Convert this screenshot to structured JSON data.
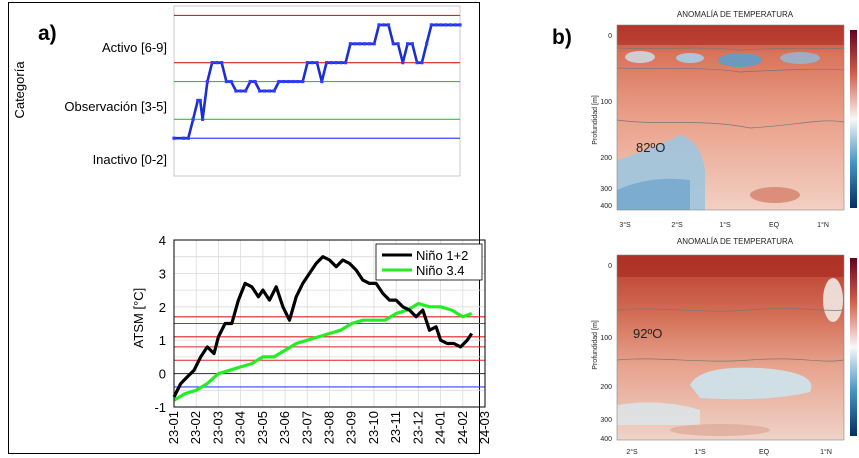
{
  "panel_a": {
    "letter": "a)",
    "top_chart": {
      "ylabel": "Categoría",
      "categories": [
        "Activo [6-9]",
        "Observación [3-5]",
        "Inactivo [0-2]"
      ]
    }
  },
  "panel_b": {
    "letter": "b)",
    "heatmap_top": {
      "title": "ANOMALÍA DE TEMPERATURA",
      "ylabel": "Profundidad [m]",
      "label": "82ºO"
    },
    "heatmap_bottom": {
      "title": "ANOMALÍA DE TEMPERATURA",
      "ylabel": "Profundidad [m]",
      "label": "92ºO"
    }
  },
  "chart_data": [
    {
      "type": "line",
      "title": "",
      "ylabel": "Categoría",
      "ylim": [
        0,
        9
      ],
      "category_axis": [
        "Inactivo [0-2]",
        "Observación [3-5]",
        "Activo [6-9]"
      ],
      "threshold_lines": [
        {
          "y": 8.5,
          "color": "#e02020"
        },
        {
          "y": 6.0,
          "color": "#e02020"
        },
        {
          "y": 5.0,
          "color": "#22cc22"
        },
        {
          "y": 3.0,
          "color": "#22cc22"
        },
        {
          "y": 2.0,
          "color": "#3344ff"
        }
      ],
      "series": [
        {
          "color": "#1a2fd0",
          "x": [
            0,
            2,
            3,
            4,
            5,
            5.5,
            6,
            7,
            8,
            9,
            10,
            11,
            12,
            13,
            14,
            15,
            16,
            17,
            18,
            19,
            20,
            21,
            22,
            23,
            24,
            25,
            26,
            27,
            28,
            29,
            30,
            31,
            32,
            33,
            34,
            35,
            36,
            37,
            38,
            39,
            40,
            41,
            42,
            43,
            44,
            45,
            46,
            47,
            48,
            49,
            50,
            51,
            52,
            53,
            54,
            55,
            56,
            57,
            58,
            59,
            60
          ],
          "values": [
            2.0,
            2.0,
            2.0,
            3.0,
            4.0,
            4.0,
            3.0,
            5.0,
            6.0,
            6.0,
            6.0,
            5.0,
            5.0,
            4.5,
            4.5,
            4.5,
            5.0,
            5.0,
            4.5,
            4.5,
            4.5,
            4.5,
            5.0,
            5.0,
            5.0,
            5.0,
            5.0,
            5.0,
            6.0,
            6.0,
            6.0,
            5.0,
            6.0,
            6.0,
            6.0,
            6.0,
            6.0,
            7.0,
            7.0,
            7.0,
            7.0,
            7.0,
            7.0,
            8.0,
            8.0,
            8.0,
            7.0,
            7.0,
            6.0,
            7.0,
            7.0,
            6.0,
            6.0,
            7.0,
            8.0,
            8.0,
            8.0,
            8.0,
            8.0,
            8.0,
            8.0
          ]
        }
      ]
    },
    {
      "type": "line",
      "title": "",
      "xlabel": "",
      "ylabel": "ATSM [°C]",
      "ylim": [
        -1,
        4
      ],
      "yticks": [
        -1,
        0,
        1,
        2,
        3,
        4
      ],
      "xticks": [
        "23-01",
        "23-02",
        "23-03",
        "23-04",
        "23-05",
        "23-06",
        "23-07",
        "23-08",
        "23-09",
        "23-10",
        "23-11",
        "23-12",
        "24-01",
        "24-02",
        "24-03"
      ],
      "grid": true,
      "legend": "top-right",
      "threshold_lines": [
        {
          "y": 1.7,
          "color": "#e02020"
        },
        {
          "y": 1.5,
          "color": "#e02020"
        },
        {
          "y": 1.1,
          "color": "#e02020"
        },
        {
          "y": 0.8,
          "color": "#e02020"
        },
        {
          "y": 0.4,
          "color": "#e02020"
        },
        {
          "y": 0.0,
          "color": "#444444"
        },
        {
          "y": -0.4,
          "color": "#3344ff"
        }
      ],
      "series": [
        {
          "name": "Niño 1+2",
          "color": "#000000",
          "x": [
            0.0,
            0.3,
            0.6,
            0.9,
            1.2,
            1.5,
            1.8,
            2.0,
            2.3,
            2.6,
            2.9,
            3.2,
            3.5,
            3.8,
            4.0,
            4.3,
            4.6,
            4.9,
            5.2,
            5.5,
            5.8,
            6.1,
            6.4,
            6.7,
            7.0,
            7.3,
            7.6,
            7.9,
            8.2,
            8.5,
            8.8,
            9.1,
            9.4,
            9.7,
            10.0,
            10.3,
            10.6,
            10.9,
            11.2,
            11.5,
            11.8,
            12.0,
            12.3,
            12.6,
            12.9,
            13.2,
            13.4
          ],
          "values": [
            -0.7,
            -0.3,
            -0.1,
            0.1,
            0.5,
            0.8,
            0.6,
            1.1,
            1.5,
            1.5,
            2.2,
            2.7,
            2.6,
            2.3,
            2.5,
            2.2,
            2.6,
            2.0,
            1.6,
            2.3,
            2.7,
            3.0,
            3.3,
            3.5,
            3.4,
            3.2,
            3.4,
            3.3,
            3.1,
            2.8,
            2.7,
            2.7,
            2.4,
            2.2,
            2.2,
            2.0,
            1.9,
            1.7,
            1.9,
            1.3,
            1.4,
            1.0,
            0.9,
            0.9,
            0.8,
            1.0,
            1.2
          ]
        },
        {
          "name": "Niño 3.4",
          "color": "#22ee22",
          "x": [
            0.0,
            0.5,
            1.0,
            1.5,
            2.0,
            2.5,
            3.0,
            3.5,
            4.0,
            4.5,
            5.0,
            5.5,
            6.0,
            6.5,
            7.0,
            7.5,
            8.0,
            8.5,
            9.0,
            9.5,
            10.0,
            10.5,
            11.0,
            11.5,
            12.0,
            12.5,
            13.0,
            13.4
          ],
          "values": [
            -0.8,
            -0.6,
            -0.5,
            -0.3,
            0.0,
            0.1,
            0.2,
            0.3,
            0.5,
            0.5,
            0.7,
            0.9,
            1.0,
            1.1,
            1.2,
            1.3,
            1.5,
            1.6,
            1.6,
            1.6,
            1.8,
            1.9,
            2.1,
            2.0,
            2.0,
            1.9,
            1.7,
            1.8
          ]
        }
      ]
    }
  ]
}
